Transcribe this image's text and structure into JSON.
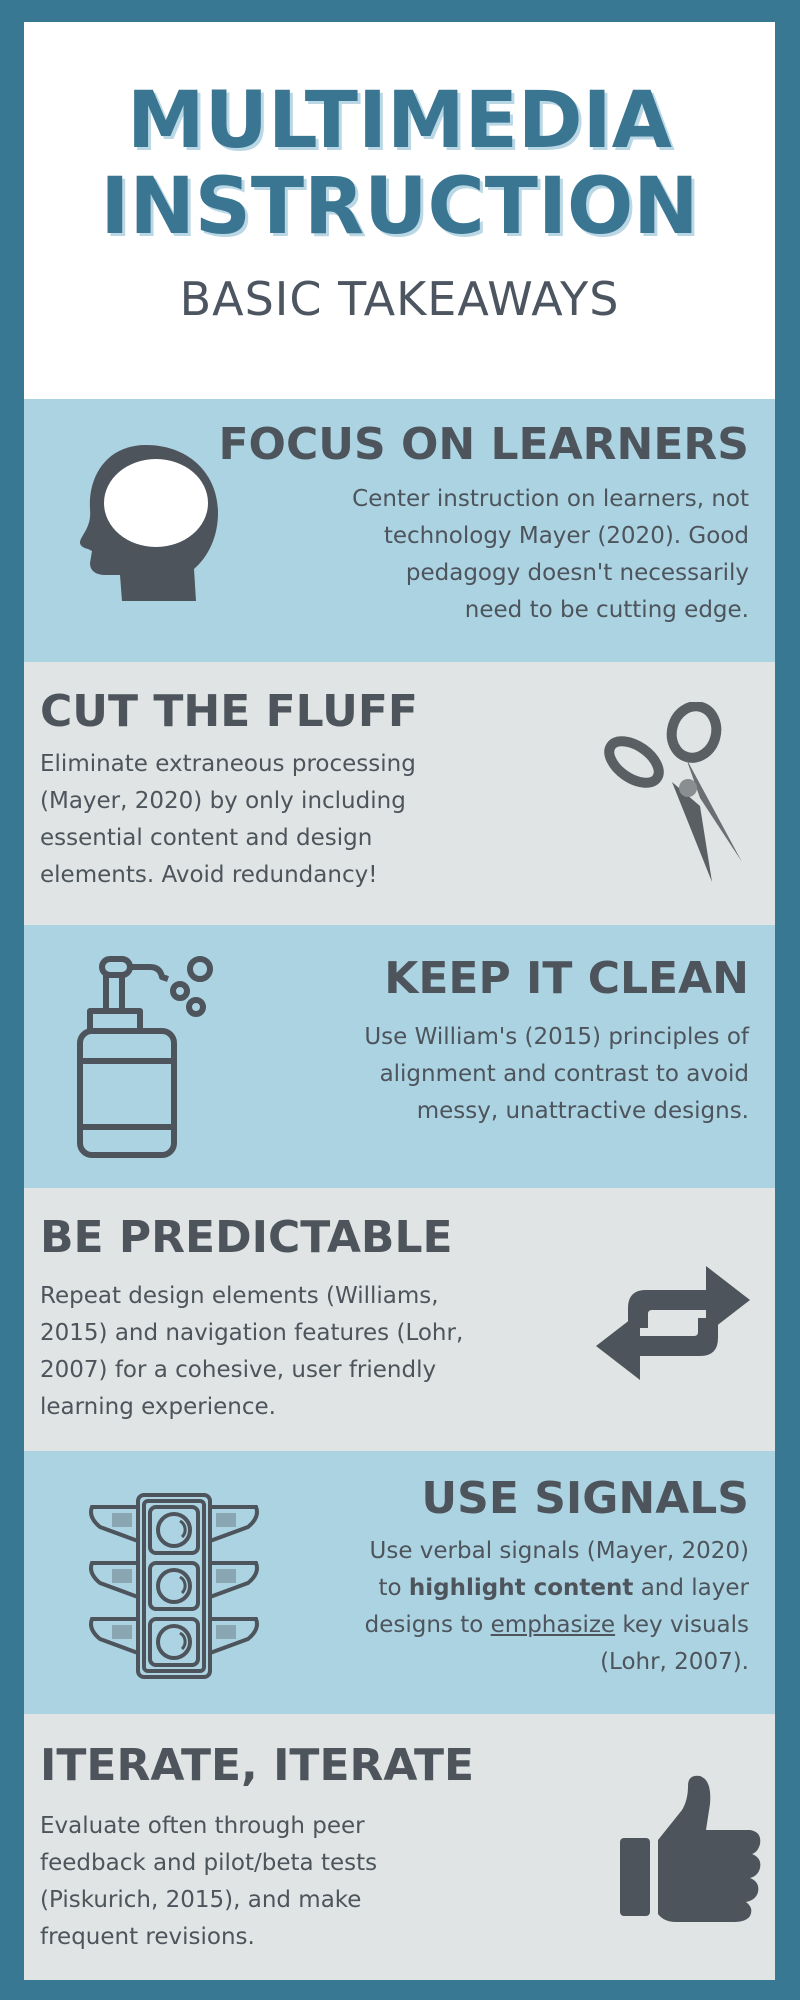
{
  "header": {
    "title_line1": "MULTIMEDIA",
    "title_line2": "INSTRUCTION",
    "subtitle": "BASIC TAKEAWAYS"
  },
  "sections": [
    {
      "heading": "FOCUS ON LEARNERS",
      "lines": [
        "Center instruction on learners, not",
        "technology Mayer (2020). Good",
        "pedagogy doesn't necessarily",
        "need to be cutting edge."
      ],
      "icon": "head-icon"
    },
    {
      "heading": "CUT THE FLUFF",
      "lines": [
        "Eliminate extraneous processing",
        "(Mayer, 2020)  by only including",
        "essential content and design",
        "elements. Avoid redundancy!"
      ],
      "icon": "scissors-icon"
    },
    {
      "heading": "KEEP IT CLEAN",
      "lines": [
        "Use William's (2015) principles of",
        "alignment and contrast to avoid",
        "messy, unattractive designs."
      ],
      "icon": "soap-dispenser-icon"
    },
    {
      "heading": "BE PREDICTABLE",
      "lines": [
        "Repeat design elements (Williams,",
        "2015) and navigation features (Lohr,",
        "2007) for a cohesive, user friendly",
        "learning experience."
      ],
      "icon": "repeat-arrows-icon"
    },
    {
      "heading": "USE SIGNALS",
      "line1": "Use verbal signals (Mayer, 2020)",
      "line2_pre": "to ",
      "line2_bold": "highlight content",
      "line2_post": " and layer",
      "line3_pre": "designs to ",
      "line3_underline": "emphasize",
      "line3_post": " key visuals",
      "line4": "(Lohr, 2007).",
      "icon": "traffic-light-icon"
    },
    {
      "heading": "ITERATE, ITERATE",
      "lines": [
        "Evaluate often through peer",
        "feedback and pilot/beta tests",
        "(Piskurich, 2015), and make",
        "frequent revisions."
      ],
      "icon": "thumbs-up-icon"
    }
  ],
  "colors": {
    "border": "#387893",
    "title": "#3a7591",
    "title_shadow": "#b9d7e4",
    "text": "#4d545c",
    "blue_band": "#acd3e2",
    "gray_band": "#e0e4e4"
  }
}
